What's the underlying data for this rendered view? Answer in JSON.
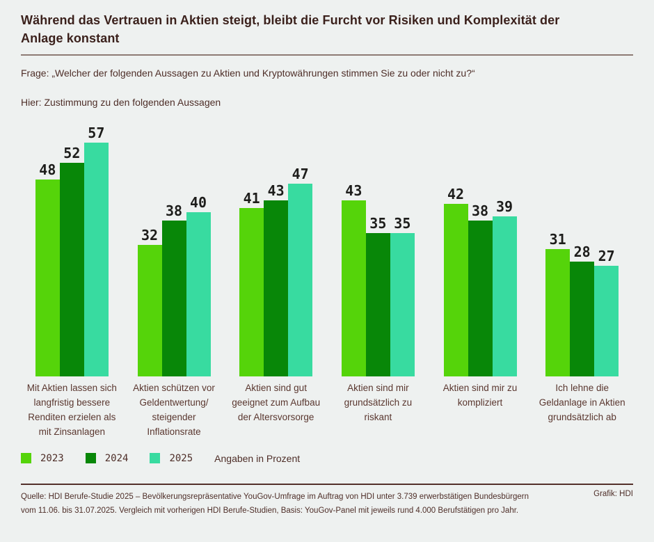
{
  "header": {
    "title": "Während das Vertrauen in Aktien steigt, bleibt die Furcht vor Risiken und Komplexität der Anlage konstant",
    "question": "Frage: „Welcher der folgenden Aussagen zu Aktien und Kryptowährungen stimmen Sie zu oder nicht zu?“",
    "hint": "Hier: Zustimmung zu den folgenden Aussagen"
  },
  "chart_data": {
    "type": "bar",
    "categories": [
      "Mit Aktien lassen sich langfristig bessere Renditen erzielen als mit Zinsanlagen",
      "Aktien schützen vor Geldentwertung/ steigender Inflationsrate",
      "Aktien sind gut geeignet zum Aufbau der Altersvorsorge",
      "Aktien sind mir grundsätzlich zu riskant",
      "Aktien sind mir zu kompliziert",
      "Ich lehne die Geldanlage in Aktien grundsätzlich ab"
    ],
    "series": [
      {
        "name": "2023",
        "color": "#55d40a",
        "values": [
          48,
          32,
          41,
          43,
          42,
          31
        ]
      },
      {
        "name": "2024",
        "color": "#088708",
        "values": [
          52,
          38,
          43,
          35,
          38,
          28
        ]
      },
      {
        "name": "2025",
        "color": "#38dba0",
        "values": [
          57,
          40,
          47,
          35,
          39,
          27
        ]
      }
    ],
    "unit_note": "Angaben in Prozent",
    "title": "",
    "xlabel": "",
    "ylabel": "",
    "ylim": [
      0,
      60
    ],
    "grid": false,
    "legend_position": "bottom",
    "value_labels": true
  },
  "footer": {
    "source_line1": "Quelle: HDI Berufe-Studie 2025 – Bevölkerungsrepräsentative YouGov-Umfrage im Auftrag von HDI unter 3.739 erwerbstätigen Bundesbürgern",
    "source_line2": "vom 11.06. bis 31.07.2025. Vergleich mit vorherigen HDI Berufe-Studien, Basis: YouGov-Panel mit jeweils rund 4.000 Berufstätigen pro Jahr.",
    "credit": "Grafik: HDI"
  },
  "colors": {
    "background": "#eef1f0",
    "title_text": "#3b211c",
    "body_text": "#4e2e28",
    "category_text": "#5a372f",
    "value_text": "#1d1d1b",
    "top_divider": "#8d7b74",
    "footer_divider": "#53302a",
    "series_2023": "#55d40a",
    "series_2024": "#088708",
    "series_2025": "#38dba0"
  }
}
